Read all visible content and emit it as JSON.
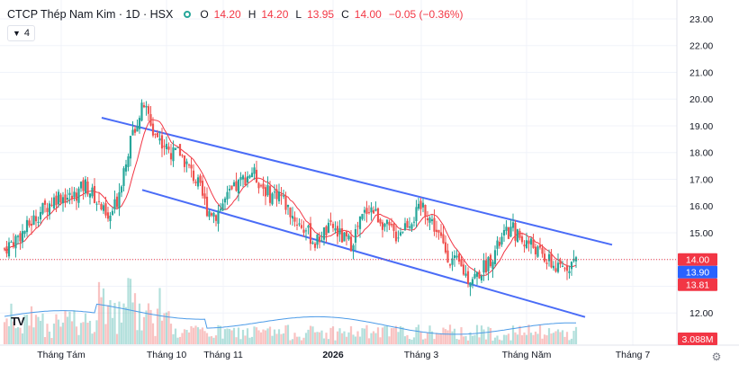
{
  "legend": {
    "title": "CTCP Thép Nam Kim · 1D · HSX",
    "open_label": "O",
    "open": "14.20",
    "high_label": "H",
    "high": "14.20",
    "low_label": "L",
    "low": "13.95",
    "close_label": "C",
    "close": "14.00",
    "change": "−0.05 (−0.36%)"
  },
  "indicator_toggle": {
    "icon": "chevron-down-icon",
    "count": "4"
  },
  "colors": {
    "up": "#26a69a",
    "down": "#ef5350",
    "ma": "#f23645",
    "channel": "#4a6cf7",
    "volume_ma": "#4c9be8",
    "price_tag": "#f23645",
    "ma_tag": "#2962ff",
    "low_tag": "#f23645"
  },
  "chart_data": {
    "type": "candlestick",
    "y_ticks": [
      "12.00",
      "13.00",
      "14.00",
      "15.00",
      "16.00",
      "17.00",
      "18.00",
      "19.00",
      "20.00",
      "21.00",
      "22.00",
      "23.00"
    ],
    "ylim": [
      11.2,
      23.2
    ],
    "x_ticks": [
      "Tháng Tám",
      "Tháng 10",
      "Tháng 11",
      "2026",
      "Tháng 3",
      "Tháng Năm",
      "Tháng 7"
    ],
    "price_labels": {
      "last": "14.00",
      "ma": "13.90",
      "low": "13.81"
    },
    "volume_label": "3.088M",
    "approx_close_path": [
      [
        0,
        14.4
      ],
      [
        8,
        15.0
      ],
      [
        16,
        15.8
      ],
      [
        24,
        16.4
      ],
      [
        30,
        16.3
      ],
      [
        36,
        16.8
      ],
      [
        42,
        16.1
      ],
      [
        46,
        15.4
      ],
      [
        50,
        16.2
      ],
      [
        54,
        17.8
      ],
      [
        58,
        19.0
      ],
      [
        62,
        19.8
      ],
      [
        66,
        18.8
      ],
      [
        70,
        18.4
      ],
      [
        74,
        17.9
      ],
      [
        78,
        18.0
      ],
      [
        82,
        17.4
      ],
      [
        86,
        16.8
      ],
      [
        90,
        15.9
      ],
      [
        94,
        15.7
      ],
      [
        98,
        16.2
      ],
      [
        102,
        16.6
      ],
      [
        106,
        17.0
      ],
      [
        110,
        17.3
      ],
      [
        114,
        16.8
      ],
      [
        118,
        16.4
      ],
      [
        122,
        16.5
      ],
      [
        126,
        15.9
      ],
      [
        130,
        15.4
      ],
      [
        134,
        15.1
      ],
      [
        138,
        14.6
      ],
      [
        142,
        15.0
      ],
      [
        146,
        15.2
      ],
      [
        150,
        14.8
      ],
      [
        154,
        14.6
      ],
      [
        158,
        15.4
      ],
      [
        162,
        16.0
      ],
      [
        166,
        15.6
      ],
      [
        170,
        15.2
      ],
      [
        174,
        14.9
      ],
      [
        178,
        15.3
      ],
      [
        182,
        15.6
      ],
      [
        186,
        16.0
      ],
      [
        190,
        15.4
      ],
      [
        194,
        14.7
      ],
      [
        198,
        14.0
      ],
      [
        202,
        13.8
      ],
      [
        206,
        13.3
      ],
      [
        210,
        13.4
      ],
      [
        214,
        13.8
      ],
      [
        218,
        14.3
      ],
      [
        222,
        14.9
      ],
      [
        226,
        15.1
      ],
      [
        230,
        14.7
      ],
      [
        234,
        14.6
      ],
      [
        238,
        14.2
      ],
      [
        242,
        13.9
      ],
      [
        246,
        13.6
      ],
      [
        250,
        13.8
      ],
      [
        254,
        14.0
      ]
    ],
    "channel": {
      "upper": [
        [
          0,
          19.3
        ],
        [
          270,
          14.55
        ]
      ],
      "lower": [
        [
          22,
          16.6
        ],
        [
          250,
          11.85
        ]
      ]
    }
  }
}
